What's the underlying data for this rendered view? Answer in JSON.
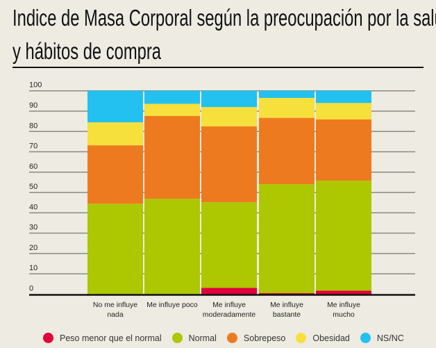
{
  "chart_data": {
    "type": "bar",
    "stacked": true,
    "title": "Indice de Masa Corporal según la preocupación por la salud y hábitos de compra",
    "xlabel": "",
    "ylabel": "",
    "ylim": [
      0,
      100
    ],
    "yticks": [
      0,
      10,
      20,
      30,
      40,
      50,
      60,
      70,
      80,
      90,
      100
    ],
    "grid": true,
    "legend": "bottom",
    "categories": [
      [
        "No me influye",
        "nada"
      ],
      [
        "Me influye poco"
      ],
      [
        "Me influye",
        "moderadamente"
      ],
      [
        "Me influye",
        "bastante"
      ],
      [
        "Me influye",
        "mucho"
      ]
    ],
    "series": [
      {
        "name": "Peso menor que el normal",
        "color": "#e0003c",
        "values": [
          0,
          0,
          3.1,
          0.5,
          1.7
        ]
      },
      {
        "name": "Normal",
        "color": "#adc700",
        "values": [
          44.5,
          46.9,
          42.1,
          53.6,
          54.1
        ]
      },
      {
        "name": "Sobrepeso",
        "color": "#ee7a1f",
        "values": [
          28.7,
          40.7,
          37.3,
          32.6,
          30.1
        ]
      },
      {
        "name": "Obesidad",
        "color": "#f6e03c",
        "values": [
          11.3,
          6.0,
          9.5,
          9.8,
          8.1
        ]
      },
      {
        "name": "NS/NC",
        "color": "#22c1f0",
        "values": [
          15.5,
          6.4,
          8.0,
          3.5,
          6.0
        ]
      }
    ]
  }
}
